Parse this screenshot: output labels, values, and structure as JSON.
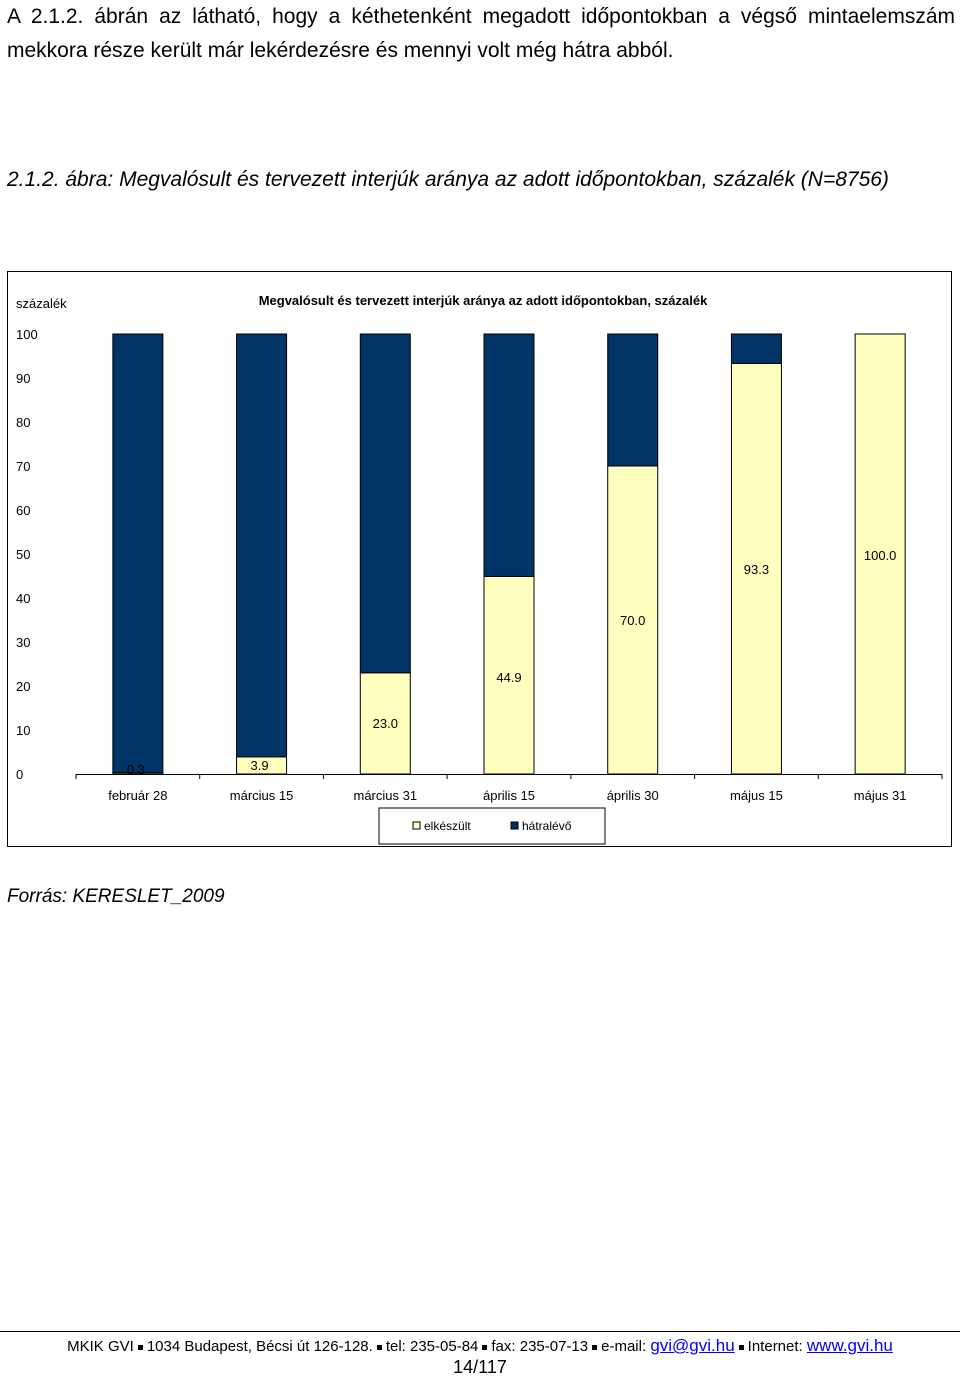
{
  "intro_text": "A 2.1.2. ábrán az látható, hogy a kéthetenként megadott időpontokban a végső mintaelemszám mekkora része került már lekérdezésre és mennyi volt még hátra abból.",
  "figure_caption": "2.1.2. ábra: Megvalósult és tervezett interjúk aránya az adott időpontokban, százalék (N=8756)",
  "source": "Forrás: KERESLET_2009",
  "colors": {
    "done": "#ffffc0",
    "remaining": "#003366"
  },
  "chart_data": {
    "type": "bar",
    "stacked": true,
    "title": "Megvalósult és tervezett interjúk aránya az adott időpontokban, százalék",
    "ylabel": "százalék",
    "xlabel": "",
    "ylim": [
      0,
      100
    ],
    "yticks": [
      0,
      10,
      20,
      30,
      40,
      50,
      60,
      70,
      80,
      90,
      100
    ],
    "categories": [
      "február 28",
      "március 15",
      "március 31",
      "április 15",
      "április 30",
      "május 15",
      "május 31"
    ],
    "series": [
      {
        "name": "elkészült",
        "values": [
          0.3,
          3.9,
          23.0,
          44.9,
          70.0,
          93.3,
          100.0
        ]
      },
      {
        "name": "hátralévő",
        "values": [
          99.7,
          96.1,
          77.0,
          55.1,
          30.0,
          6.7,
          0.0
        ]
      }
    ],
    "data_labels": [
      "0.3",
      "3.9",
      "23.0",
      "44.9",
      "70.0",
      "93.3",
      "100.0"
    ],
    "legend": "bottom-center",
    "grid": false
  },
  "footer": {
    "org": "MKIK GVI",
    "address": "1034 Budapest, Bécsi út 126-128.",
    "tel": "tel: 235-05-84",
    "fax": "fax: 235-07-13",
    "email_label": "e-mail:",
    "email": "gvi@gvi.hu",
    "internet_label": "Internet:",
    "web": "www.gvi.hu"
  },
  "page_number": "14/117"
}
